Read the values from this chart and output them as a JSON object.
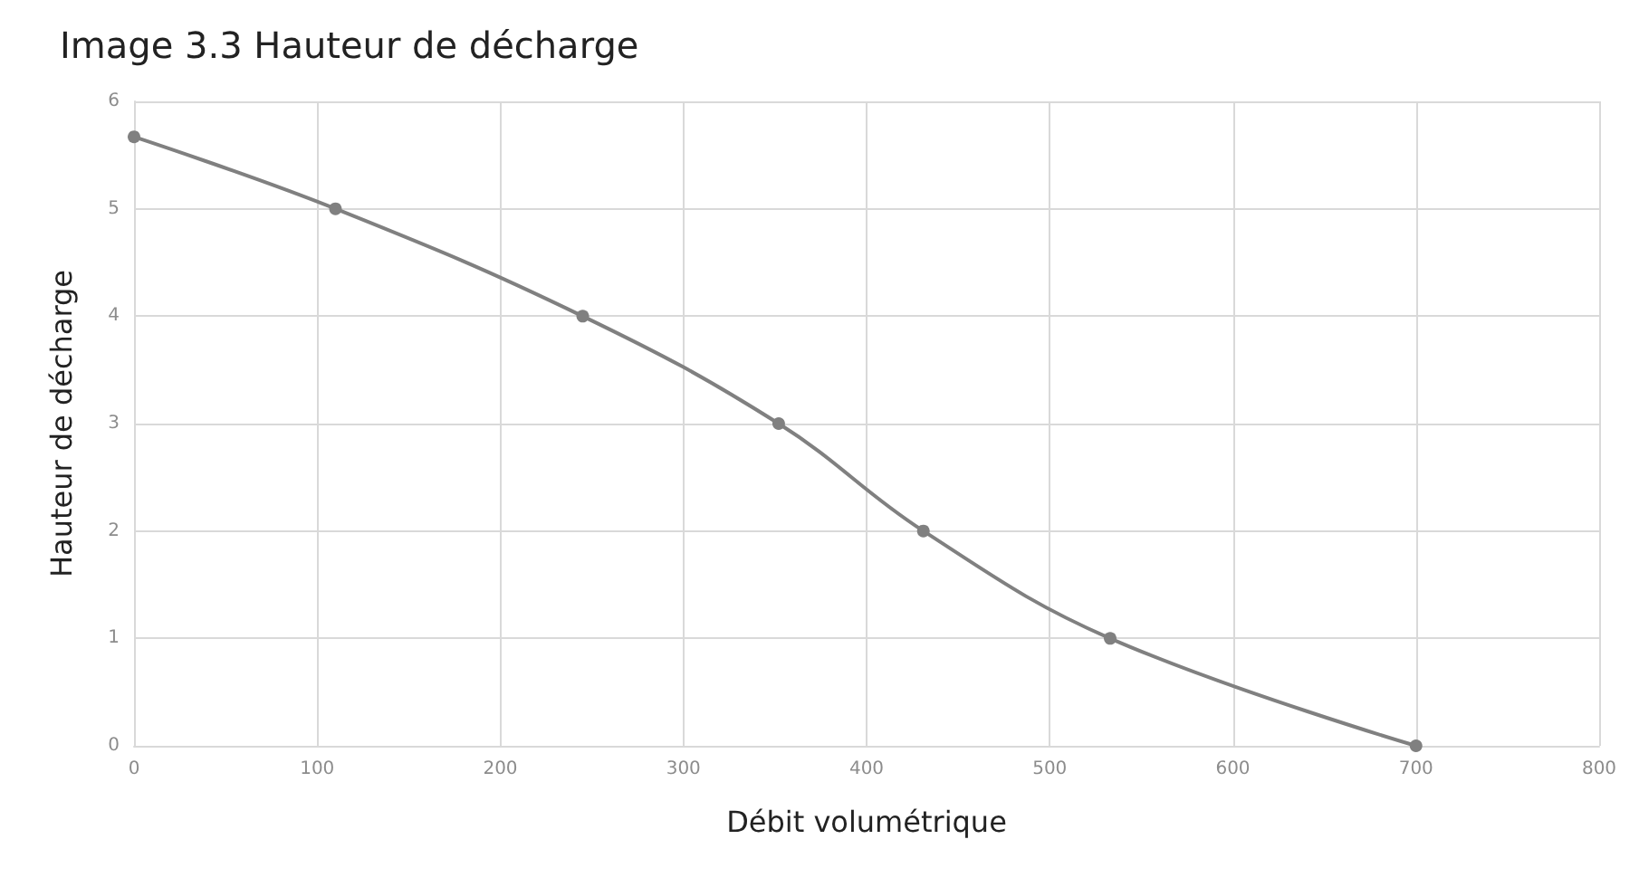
{
  "chart_data": {
    "type": "line",
    "title": "Image 3.3 Hauteur de décharge",
    "xlabel": "Débit volumétrique",
    "ylabel": "Hauteur de décharge",
    "series": [
      {
        "color": "#808080",
        "x": [
          0,
          110,
          245,
          352,
          431,
          533,
          700
        ],
        "values": [
          5.67,
          5,
          4,
          3,
          2,
          1,
          0
        ]
      }
    ],
    "xlim": [
      0,
      800
    ],
    "xticks": [
      0,
      100,
      200,
      300,
      400,
      500,
      600,
      700,
      800
    ],
    "ylim": [
      0,
      6
    ],
    "yticks": [
      0,
      1,
      2,
      3,
      4,
      5,
      6
    ],
    "grid": true,
    "marker": "circle",
    "line_style": "solid"
  }
}
